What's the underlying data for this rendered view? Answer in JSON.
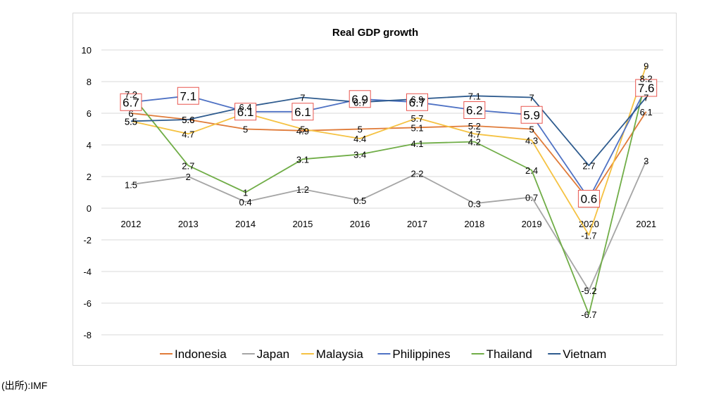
{
  "source_note": "(出所):IMF",
  "chart_data": {
    "type": "line",
    "title": "Real GDP growth",
    "xlabel": "",
    "ylabel": "",
    "categories": [
      "2012",
      "2013",
      "2014",
      "2015",
      "2016",
      "2017",
      "2018",
      "2019",
      "2020",
      "2021"
    ],
    "ylim": [
      -8,
      10
    ],
    "yticks": [
      -8,
      -6,
      -4,
      -2,
      0,
      2,
      4,
      6,
      8,
      10
    ],
    "grid": true,
    "legend": "bottom",
    "series": [
      {
        "name": "Indonesia",
        "color": "#e07b39",
        "values": [
          6,
          5.6,
          5,
          4.9,
          5,
          5.1,
          5.2,
          5,
          0.5,
          6.1
        ]
      },
      {
        "name": "Japan",
        "color": "#a5a5a5",
        "values": [
          1.5,
          2,
          0.4,
          1.2,
          0.5,
          2.2,
          0.3,
          0.7,
          -5.2,
          3
        ]
      },
      {
        "name": "Malaysia",
        "color": "#f5c242",
        "values": [
          5.5,
          4.7,
          6,
          5,
          4.4,
          5.7,
          4.7,
          4.3,
          -1.7,
          9
        ]
      },
      {
        "name": "Philippines",
        "color": "#4f72c4",
        "values": [
          6.7,
          7.1,
          6.1,
          6.1,
          6.9,
          6.7,
          6.2,
          5.9,
          0.6,
          7.6
        ]
      },
      {
        "name": "Thailand",
        "color": "#70ad47",
        "values": [
          7.2,
          2.7,
          1,
          3.1,
          3.4,
          4.1,
          4.2,
          2.4,
          -6.7,
          8.2
        ]
      },
      {
        "name": "Vietnam",
        "color": "#2e5b8e",
        "values": [
          5.5,
          5.6,
          6.4,
          7,
          6.7,
          6.9,
          7.1,
          7,
          2.7,
          7
        ]
      }
    ],
    "highlighted_series": "Philippines",
    "highlight_box_color": "#e8554e"
  }
}
